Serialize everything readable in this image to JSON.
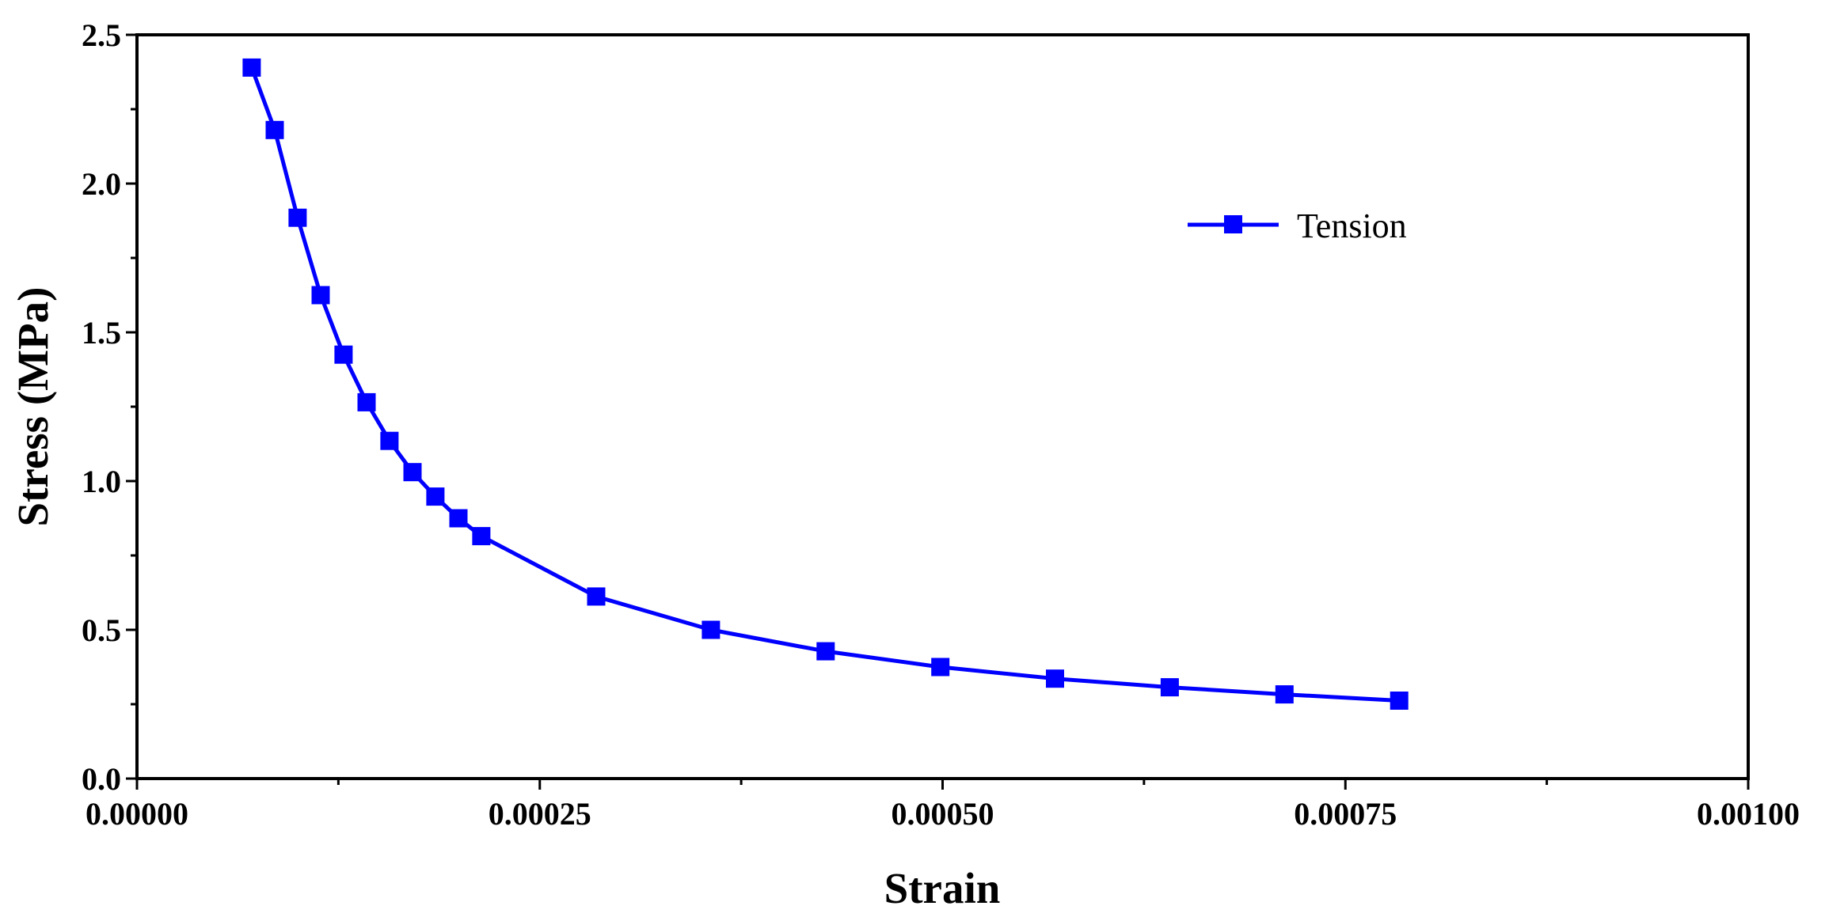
{
  "chart_data": {
    "type": "line",
    "title": "",
    "xlabel": "Strain",
    "ylabel": "Stress (MPa)",
    "xlim": [
      0,
      0.001
    ],
    "ylim": [
      0,
      2.5
    ],
    "grid": false,
    "legend_position": "top-right",
    "x_ticks": [
      0,
      0.00025,
      0.0005,
      0.00075,
      0.001
    ],
    "x_tick_labels": [
      "0.00000",
      "0.00025",
      "0.00050",
      "0.00075",
      "0.00100"
    ],
    "y_ticks": [
      0,
      0.5,
      1.0,
      1.5,
      2.0,
      2.5
    ],
    "y_tick_labels": [
      "0.0",
      "0.5",
      "1.0",
      "1.5",
      "2.0",
      "2.5"
    ],
    "series": [
      {
        "name": "Tension",
        "color": "#0000ff",
        "marker": "square",
        "x": [
          7.12e-05,
          8.55e-05,
          9.97e-05,
          0.000114,
          0.0001282,
          0.0001425,
          0.0001567,
          0.000171,
          0.0001852,
          0.0001995,
          0.0002137,
          0.000285,
          0.0003562,
          0.0004274,
          0.0004986,
          0.0005698,
          0.000641,
          0.0007122,
          0.0007834
        ],
        "y": [
          2.39,
          2.18,
          1.885,
          1.625,
          1.425,
          1.265,
          1.135,
          1.03,
          0.948,
          0.875,
          0.815,
          0.612,
          0.5,
          0.428,
          0.375,
          0.336,
          0.307,
          0.283,
          0.262
        ]
      }
    ]
  }
}
